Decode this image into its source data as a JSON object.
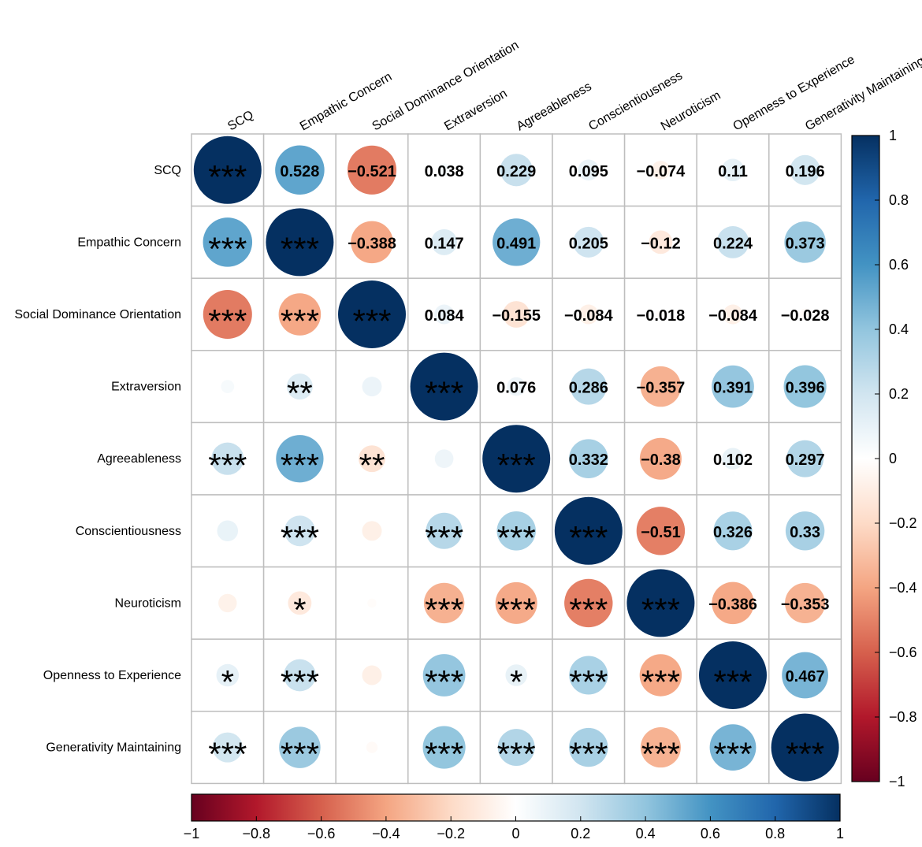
{
  "chart_data": {
    "type": "correlation-matrix",
    "variables": [
      "SCQ",
      "Empathic Concern",
      "Social Dominance Orientation",
      "Extraversion",
      "Agreeableness",
      "Conscientiousness",
      "Neuroticism",
      "Openness to Experience",
      "Generativity Maintaining"
    ],
    "matrix": [
      [
        1,
        0.528,
        -0.521,
        0.038,
        0.229,
        0.095,
        -0.074,
        0.11,
        0.196
      ],
      [
        0.528,
        1,
        -0.388,
        0.147,
        0.491,
        0.205,
        -0.12,
        0.224,
        0.373
      ],
      [
        -0.521,
        -0.388,
        1,
        0.084,
        -0.155,
        -0.084,
        -0.018,
        -0.084,
        -0.028
      ],
      [
        0.038,
        0.147,
        0.084,
        1,
        0.076,
        0.286,
        -0.357,
        0.391,
        0.396
      ],
      [
        0.229,
        0.491,
        -0.155,
        0.076,
        1,
        0.332,
        -0.38,
        0.102,
        0.297
      ],
      [
        0.095,
        0.205,
        -0.084,
        0.286,
        0.332,
        1,
        -0.51,
        0.326,
        0.33
      ],
      [
        -0.074,
        -0.12,
        -0.018,
        -0.357,
        -0.38,
        -0.51,
        1,
        -0.386,
        -0.353
      ],
      [
        0.11,
        0.224,
        -0.084,
        0.391,
        0.102,
        0.326,
        -0.386,
        1,
        0.467
      ],
      [
        0.196,
        0.373,
        -0.028,
        0.396,
        0.297,
        0.33,
        -0.353,
        0.467,
        1
      ]
    ],
    "upper_labels": [
      [
        "***",
        "0.528",
        "−0.521",
        "0.038",
        "0.229",
        "0.095",
        "−0.074",
        "0.11",
        "0.196"
      ],
      [
        "***",
        "***",
        "−0.388",
        "0.147",
        "0.491",
        "0.205",
        "−0.12",
        "0.224",
        "0.373"
      ],
      [
        "***",
        "***",
        "***",
        "0.084",
        "−0.155",
        "−0.084",
        "−0.018",
        "−0.084",
        "−0.028"
      ],
      [
        "",
        "**",
        "",
        "***",
        "0.076",
        "0.286",
        "−0.357",
        "0.391",
        "0.396"
      ],
      [
        "***",
        "***",
        "**",
        "",
        "***",
        "0.332",
        "−0.38",
        "0.102",
        "0.297"
      ],
      [
        "",
        "***",
        "",
        "***",
        "***",
        "***",
        "−0.51",
        "0.326",
        "0.33"
      ],
      [
        "",
        "*",
        "",
        "***",
        "***",
        "***",
        "***",
        "−0.386",
        "−0.353"
      ],
      [
        "*",
        "***",
        "",
        "***",
        "*",
        "***",
        "***",
        "***",
        "0.467"
      ],
      [
        "***",
        "***",
        "",
        "***",
        "***",
        "***",
        "***",
        "***",
        "***"
      ]
    ],
    "colorbar_range": [
      -1,
      1
    ],
    "right_colorbar_ticks": [
      "1",
      "0.8",
      "0.6",
      "0.4",
      "0.2",
      "0",
      "−0.2",
      "−0.4",
      "−0.6",
      "−0.8",
      "−1"
    ],
    "bottom_colorbar_ticks": [
      "−1",
      "−0.8",
      "−0.6",
      "−0.4",
      "−0.2",
      "0",
      "0.2",
      "0.4",
      "0.6",
      "0.8",
      "1"
    ],
    "colors": {
      "negative_max": "#67001F",
      "neutral": "#FFFFFF",
      "positive_max": "#053061",
      "grid": "#BEBEBE"
    }
  }
}
